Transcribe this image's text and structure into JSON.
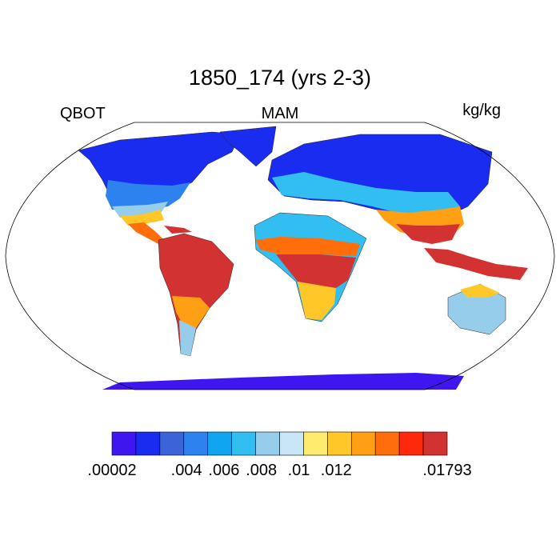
{
  "map": {
    "title": "1850_174 (yrs 2-3)",
    "left_label": "QBOT",
    "center_label": "MAM",
    "right_label": "kg/kg",
    "colorbar": {
      "colors": [
        "#4016f0",
        "#1a2cf0",
        "#3c64d8",
        "#2d82f0",
        "#0fa5f0",
        "#32bef0",
        "#96cdeb",
        "#c8e6f5",
        "#ffeb6e",
        "#ffc828",
        "#ffa014",
        "#ff6e0a",
        "#ff280a",
        "#d23232"
      ],
      "range": [
        2e-05,
        0.01793
      ],
      "ticks": [
        {
          "value": 2e-05,
          "label": ".00002"
        },
        {
          "value": 0.004,
          "label": ".004"
        },
        {
          "value": 0.006,
          "label": ".006"
        },
        {
          "value": 0.008,
          "label": ".008"
        },
        {
          "value": 0.01,
          "label": ".01"
        },
        {
          "value": 0.012,
          "label": ".012"
        },
        {
          "value": 0.01793,
          "label": ".01793"
        }
      ]
    }
  }
}
